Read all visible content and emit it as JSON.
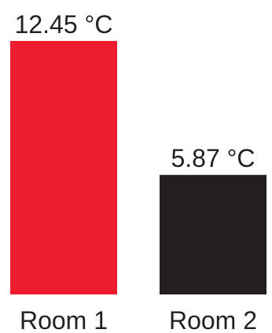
{
  "chart_data": {
    "type": "bar",
    "categories": [
      "Room 1",
      "Room 2"
    ],
    "values": [
      12.45,
      5.87
    ],
    "unit": "°C",
    "data_labels": [
      "12.45 °C",
      "5.87 °C"
    ],
    "colors": [
      "#ed1c2e",
      "#231f20"
    ],
    "title": "",
    "xlabel": "",
    "ylabel": "",
    "ylim": [
      0,
      12.45
    ],
    "grid": false,
    "legend": "none"
  }
}
